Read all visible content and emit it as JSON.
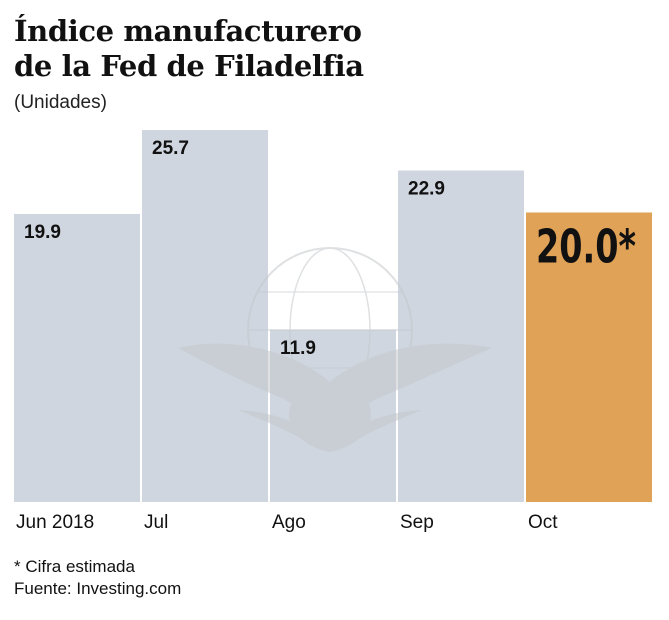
{
  "chart_data": {
    "type": "bar",
    "title": "Índice manufacturero de la Fed de Filadelfia",
    "title_lines": [
      "Índice manufacturero",
      "de la Fed de Filadelfia"
    ],
    "subtitle": "(Unidades)",
    "categories": [
      "Jun 2018",
      "Jul",
      "Ago",
      "Sep",
      "Oct"
    ],
    "values": [
      19.9,
      25.7,
      11.9,
      22.9,
      20.0
    ],
    "value_labels": [
      "19.9",
      "25.7",
      "11.9",
      "22.9",
      "20.0*"
    ],
    "highlight_index": 4,
    "ylim": [
      0,
      25.7
    ],
    "xlabel": "",
    "ylabel": "",
    "grid": false,
    "colors": {
      "bar": "#cfd6df",
      "highlight": "#e0a256",
      "text": "#111111",
      "watermark": "#c4c8cc"
    }
  },
  "notes": [
    "* Cifra estimada",
    "Fuente: Investing.com"
  ]
}
